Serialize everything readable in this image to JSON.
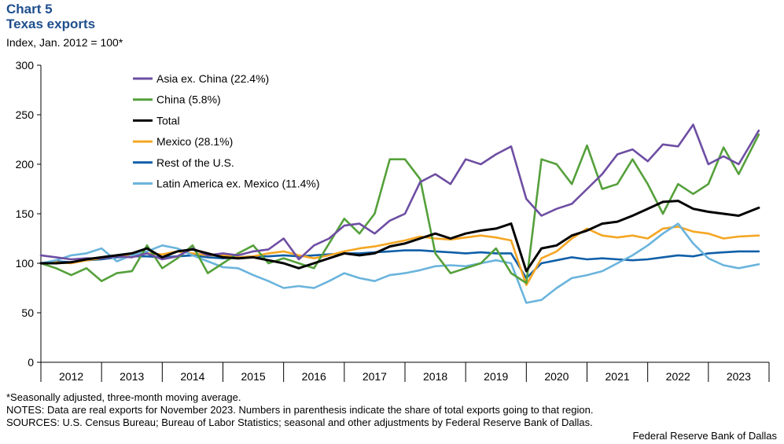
{
  "header": {
    "label": "Chart 5",
    "title": "Texas exports",
    "subtitle": "Index,  Jan. 2012 = 100*"
  },
  "footer": {
    "footnote": "*Seasonally adjusted, three-month moving average.",
    "notes": "NOTES: Data are real exports for November 2023. Numbers in parenthesis indicate the share of total exports going to that region.",
    "sources": "SOURCES: U.S. Census Bureau; Bureau of Labor Statistics; seasonal and other adjustments by Federal Reserve Bank of Dallas.",
    "credit": "Federal Reserve Bank of Dallas"
  },
  "chart_data": {
    "type": "line",
    "title": "Texas exports",
    "ylabel": "Index,  Jan. 2012 = 100*",
    "xlabel": "",
    "ylim": [
      0,
      300
    ],
    "yticks": [
      0,
      50,
      100,
      150,
      200,
      250,
      300
    ],
    "xlim": [
      2012,
      2024
    ],
    "xtick_labels": [
      "2012",
      "2013",
      "2014",
      "2015",
      "2016",
      "2017",
      "2018",
      "2019",
      "2020",
      "2021",
      "2022",
      "2023"
    ],
    "legend_position": "top-left",
    "grid": false,
    "x": [
      2012.0,
      2012.25,
      2012.5,
      2012.75,
      2013.0,
      2013.25,
      2013.5,
      2013.75,
      2014.0,
      2014.25,
      2014.5,
      2014.75,
      2015.0,
      2015.25,
      2015.5,
      2015.75,
      2016.0,
      2016.25,
      2016.5,
      2016.75,
      2017.0,
      2017.25,
      2017.5,
      2017.75,
      2018.0,
      2018.25,
      2018.5,
      2018.75,
      2019.0,
      2019.25,
      2019.5,
      2019.75,
      2020.0,
      2020.25,
      2020.5,
      2020.75,
      2021.0,
      2021.25,
      2021.5,
      2021.75,
      2022.0,
      2022.25,
      2022.5,
      2022.75,
      2023.0,
      2023.25,
      2023.5,
      2023.83
    ],
    "series": [
      {
        "name": "Asia ex. China (22.4%)",
        "color": "#6e4ea3",
        "values": [
          108,
          106,
          104,
          105,
          105,
          107,
          106,
          110,
          104,
          107,
          115,
          108,
          110,
          108,
          112,
          114,
          125,
          104,
          118,
          125,
          138,
          140,
          130,
          143,
          150,
          182,
          190,
          180,
          205,
          200,
          210,
          218,
          165,
          148,
          155,
          160,
          175,
          190,
          210,
          215,
          203,
          220,
          218,
          240,
          200,
          208,
          200,
          234
        ]
      },
      {
        "name": "China (5.8%)",
        "color": "#55a03b",
        "values": [
          100,
          95,
          88,
          95,
          82,
          90,
          92,
          118,
          95,
          105,
          118,
          90,
          100,
          110,
          118,
          100,
          105,
          100,
          95,
          120,
          145,
          130,
          150,
          205,
          205,
          185,
          110,
          90,
          95,
          100,
          115,
          90,
          80,
          205,
          200,
          180,
          219,
          175,
          180,
          205,
          180,
          150,
          180,
          170,
          180,
          217,
          190,
          230
        ]
      },
      {
        "name": "Total",
        "color": "#000000",
        "values": [
          100,
          100,
          101,
          104,
          106,
          108,
          110,
          115,
          106,
          112,
          114,
          110,
          106,
          105,
          106,
          103,
          100,
          95,
          100,
          105,
          110,
          108,
          110,
          117,
          120,
          125,
          130,
          125,
          130,
          133,
          135,
          140,
          92,
          115,
          118,
          128,
          133,
          140,
          142,
          148,
          155,
          162,
          163,
          155,
          152,
          150,
          148,
          156
        ]
      },
      {
        "name": "Mexico (28.1%)",
        "color": "#f5a623",
        "values": [
          100,
          101,
          100,
          103,
          105,
          107,
          108,
          110,
          109,
          112,
          110,
          108,
          108,
          106,
          107,
          110,
          112,
          108,
          105,
          108,
          112,
          115,
          117,
          120,
          123,
          127,
          125,
          124,
          126,
          128,
          126,
          123,
          78,
          105,
          112,
          125,
          135,
          128,
          126,
          128,
          125,
          135,
          137,
          132,
          130,
          125,
          127,
          128
        ]
      },
      {
        "name": "Rest of the U.S.",
        "color": "#0f5fa8",
        "values": [
          100,
          102,
          101,
          103,
          104,
          106,
          107,
          107,
          106,
          107,
          108,
          106,
          105,
          106,
          107,
          107,
          108,
          107,
          108,
          109,
          110,
          110,
          111,
          112,
          113,
          113,
          112,
          111,
          110,
          111,
          110,
          110,
          85,
          100,
          103,
          106,
          104,
          105,
          104,
          103,
          104,
          106,
          108,
          107,
          110,
          111,
          112,
          112
        ]
      },
      {
        "name": "Latin America ex. Mexico (11.4%)",
        "color": "#6ab4dc",
        "values": [
          100,
          103,
          108,
          110,
          115,
          102,
          108,
          112,
          118,
          115,
          108,
          102,
          96,
          95,
          88,
          82,
          75,
          77,
          75,
          82,
          90,
          85,
          82,
          88,
          90,
          93,
          97,
          98,
          97,
          100,
          103,
          100,
          60,
          63,
          75,
          85,
          88,
          92,
          100,
          108,
          118,
          130,
          140,
          120,
          105,
          98,
          95,
          99
        ]
      }
    ]
  }
}
